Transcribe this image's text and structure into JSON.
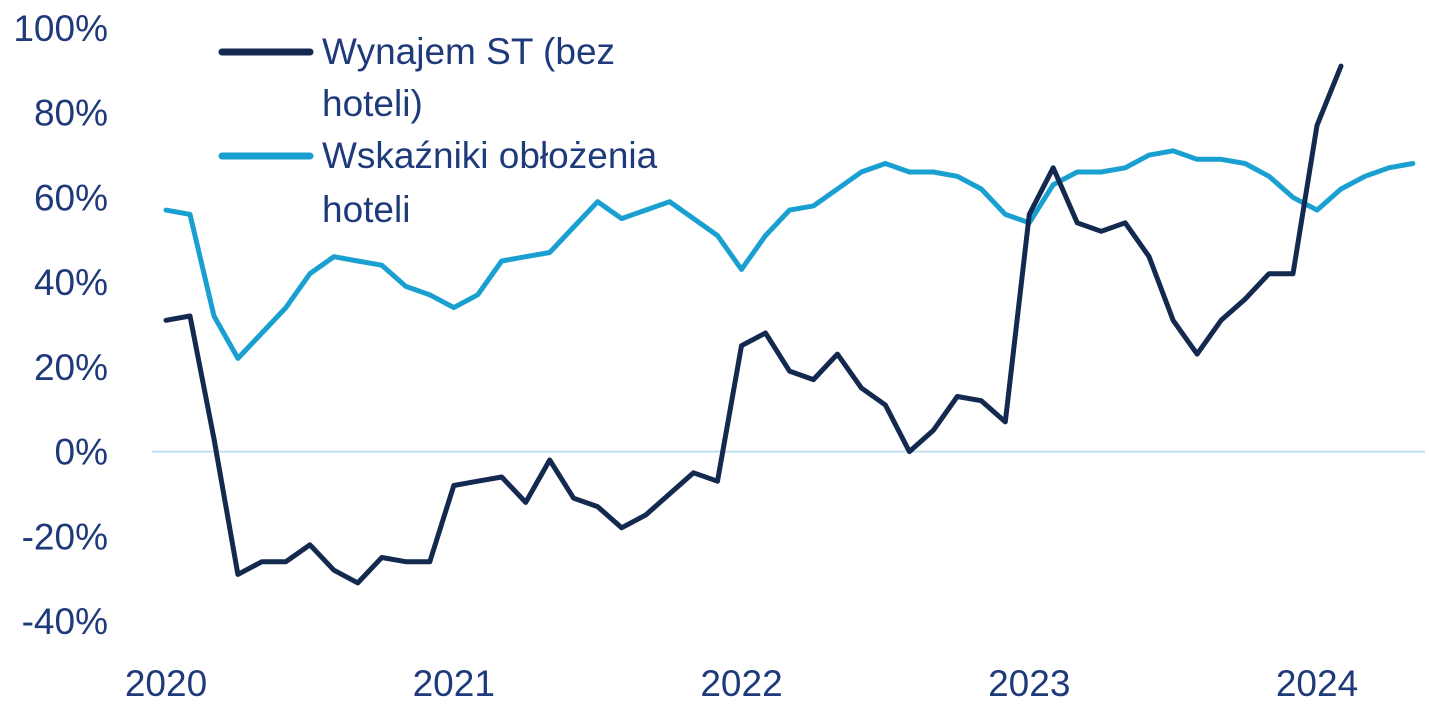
{
  "chart_data": {
    "type": "line",
    "title": "",
    "xlabel": "",
    "ylabel": "",
    "ylim": [
      -40,
      100
    ],
    "yticks": [
      "100%",
      "80%",
      "60%",
      "40%",
      "20%",
      "0%",
      "-20%",
      "-40%"
    ],
    "ytick_values": [
      100,
      80,
      60,
      40,
      20,
      0,
      -20,
      -40
    ],
    "xticks": [
      "2020",
      "2021",
      "2022",
      "2023",
      "2024"
    ],
    "x_start": "2020-01",
    "x_end": "2024-05",
    "grid": false,
    "zero_line": true,
    "legend_position": "top-left",
    "series": [
      {
        "name_lines": [
          "Wynajem ST (bez",
          "hoteli)"
        ],
        "color": "#14294f",
        "x": [
          "2020-01",
          "2020-02",
          "2020-03",
          "2020-04",
          "2020-05",
          "2020-06",
          "2020-07",
          "2020-08",
          "2020-09",
          "2020-10",
          "2020-11",
          "2020-12",
          "2021-01",
          "2021-02",
          "2021-03",
          "2021-04",
          "2021-05",
          "2021-06",
          "2021-07",
          "2021-08",
          "2021-09",
          "2021-10",
          "2021-11",
          "2021-12",
          "2022-01",
          "2022-02",
          "2022-03",
          "2022-04",
          "2022-05",
          "2022-06",
          "2022-07",
          "2022-08",
          "2022-09",
          "2022-10",
          "2022-11",
          "2022-12",
          "2023-01",
          "2023-02",
          "2023-03",
          "2023-04",
          "2023-05",
          "2023-06",
          "2023-07",
          "2023-08",
          "2023-09",
          "2023-10",
          "2023-11",
          "2023-12",
          "2024-01",
          "2024-02"
        ],
        "values": [
          31,
          32,
          3,
          -29,
          -26,
          -26,
          -22,
          -28,
          -31,
          -25,
          -26,
          -26,
          -8,
          -7,
          -6,
          -12,
          -2,
          -11,
          -13,
          -18,
          -15,
          -10,
          -5,
          -7,
          25,
          28,
          19,
          17,
          23,
          15,
          11,
          0,
          5,
          13,
          12,
          7,
          56,
          67,
          54,
          52,
          54,
          46,
          31,
          23,
          31,
          36,
          42,
          42,
          77,
          91
        ]
      },
      {
        "name_lines": [
          "Wskaźniki obłożenia",
          "hoteli"
        ],
        "color": "#1aa0d0",
        "x": [
          "2020-01",
          "2020-02",
          "2020-03",
          "2020-04",
          "2020-05",
          "2020-06",
          "2020-07",
          "2020-08",
          "2020-09",
          "2020-10",
          "2020-11",
          "2020-12",
          "2021-01",
          "2021-02",
          "2021-03",
          "2021-04",
          "2021-05",
          "2021-06",
          "2021-07",
          "2021-08",
          "2021-09",
          "2021-10",
          "2021-11",
          "2021-12",
          "2022-01",
          "2022-02",
          "2022-03",
          "2022-04",
          "2022-05",
          "2022-06",
          "2022-07",
          "2022-08",
          "2022-09",
          "2022-10",
          "2022-11",
          "2022-12",
          "2023-01",
          "2023-02",
          "2023-03",
          "2023-04",
          "2023-05",
          "2023-06",
          "2023-07",
          "2023-08",
          "2023-09",
          "2023-10",
          "2023-11",
          "2023-12",
          "2024-01",
          "2024-02",
          "2024-03",
          "2024-04",
          "2024-05"
        ],
        "values": [
          57,
          56,
          32,
          22,
          28,
          34,
          42,
          46,
          45,
          44,
          39,
          37,
          34,
          37,
          45,
          46,
          47,
          53,
          59,
          55,
          57,
          59,
          55,
          51,
          43,
          51,
          57,
          58,
          62,
          66,
          68,
          66,
          66,
          65,
          62,
          56,
          54,
          63,
          66,
          66,
          67,
          70,
          71,
          69,
          69,
          68,
          65,
          60,
          57,
          62,
          65,
          67,
          68
        ]
      }
    ]
  }
}
